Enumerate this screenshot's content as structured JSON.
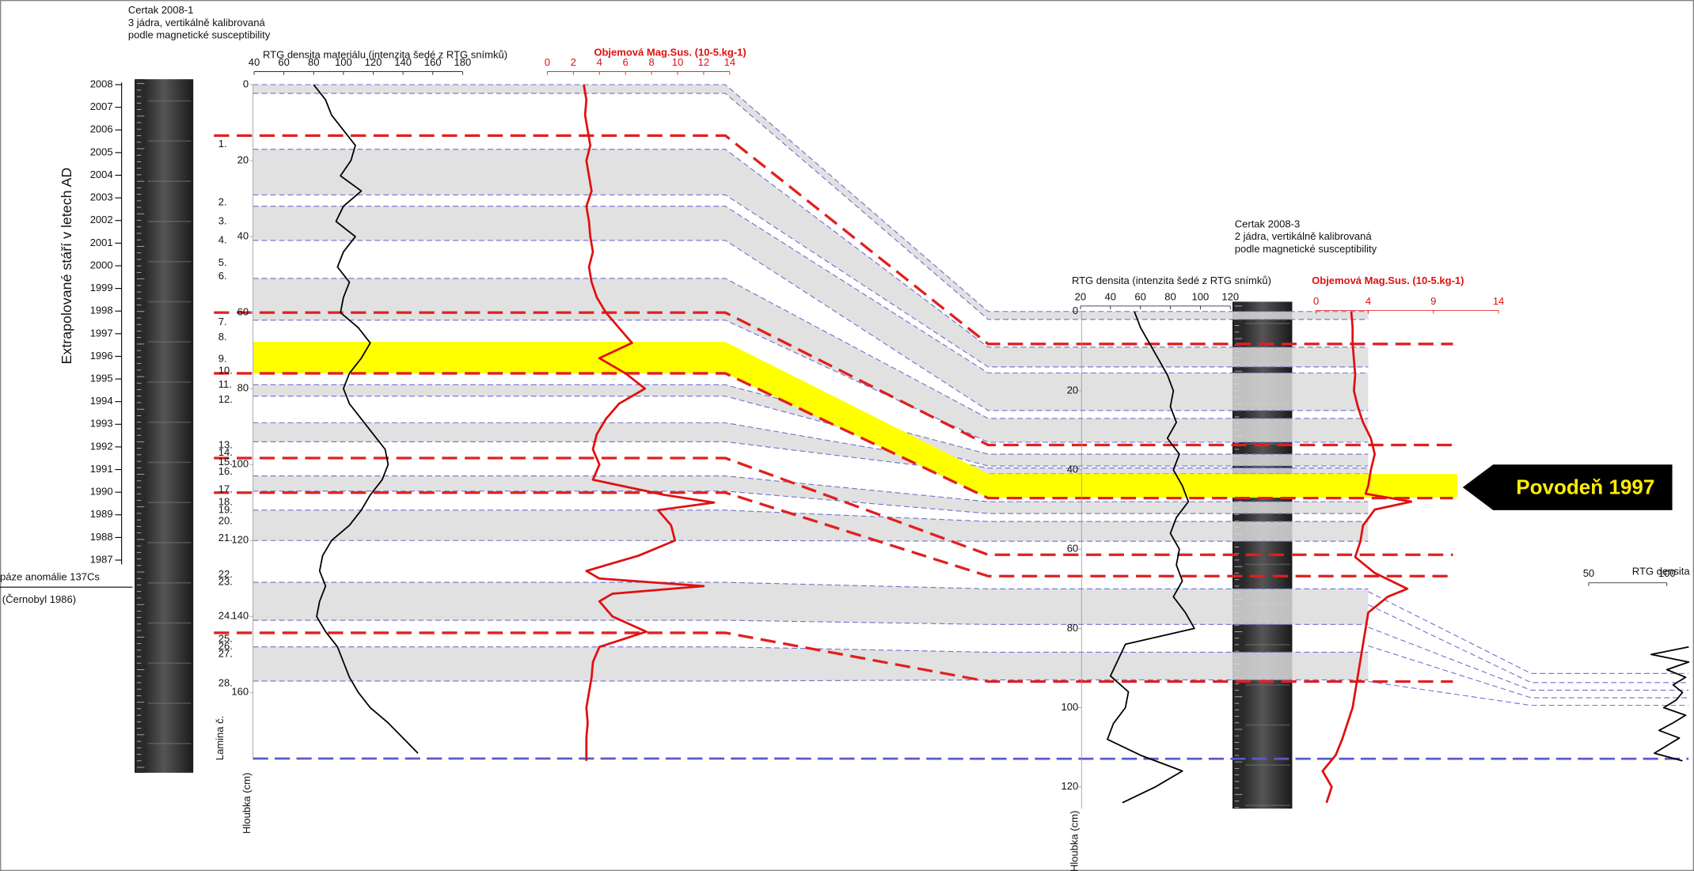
{
  "cores": [
    {
      "name": "Certak 2008-1",
      "lines": [
        "3 jádra, vertikálně kalibrovaná",
        "podle magnetické susceptibility"
      ],
      "depth_label": "Hloubka (cm)",
      "lamina_label": "Lamina č.",
      "depth_ticks": [
        0,
        20,
        40,
        60,
        80,
        100,
        120,
        140,
        160
      ],
      "laminae": [
        {
          "label": "1.",
          "depth": 15.7
        },
        {
          "label": "2.",
          "depth": 31
        },
        {
          "label": "3.",
          "depth": 36
        },
        {
          "label": "4.",
          "depth": 41
        },
        {
          "label": "5.",
          "depth": 47
        },
        {
          "label": "6.",
          "depth": 50.5
        },
        {
          "label": "7.",
          "depth": 62.6
        },
        {
          "label": "8.",
          "depth": 66.6
        },
        {
          "label": "9.",
          "depth": 72.3
        },
        {
          "label": "10.",
          "depth": 75.4
        },
        {
          "label": "11.",
          "depth": 79
        },
        {
          "label": "12.",
          "depth": 83
        },
        {
          "label": "13.",
          "depth": 95
        },
        {
          "label": "14.",
          "depth": 97
        },
        {
          "label": "15.",
          "depth": 99.4
        },
        {
          "label": "16.",
          "depth": 102
        },
        {
          "label": "17.",
          "depth": 106.6
        },
        {
          "label": "18.",
          "depth": 110
        },
        {
          "label": "19.",
          "depth": 112
        },
        {
          "label": "20.",
          "depth": 115
        },
        {
          "label": "21.",
          "depth": 119.4
        },
        {
          "label": "22.",
          "depth": 129
        },
        {
          "label": "23.",
          "depth": 131
        },
        {
          "label": "24.",
          "depth": 140
        },
        {
          "label": "25.",
          "depth": 146
        },
        {
          "label": "26.",
          "depth": 148
        },
        {
          "label": "27.",
          "depth": 150
        },
        {
          "label": "28.",
          "depth": 157.7
        }
      ],
      "rtg": {
        "title": "RTG densita materiálu (intenzita šedé z RTG snímků)",
        "lim": [
          40,
          180
        ],
        "ticks": [
          40,
          60,
          80,
          100,
          120,
          140,
          160,
          180
        ],
        "color": "#000000",
        "depths": [
          0,
          4,
          8,
          12,
          16,
          20,
          24,
          28,
          32,
          36,
          40,
          44,
          48,
          52,
          56,
          60,
          64,
          68,
          72,
          76,
          80,
          84,
          88,
          92,
          96,
          100,
          104,
          108,
          112,
          116,
          120,
          124,
          128,
          132,
          136,
          140,
          144,
          148,
          152,
          156,
          160,
          164,
          168,
          172,
          176
        ],
        "values": [
          80,
          88,
          92,
          100,
          108,
          105,
          98,
          112,
          100,
          95,
          108,
          100,
          96,
          104,
          100,
          98,
          110,
          118,
          112,
          104,
          100,
          104,
          112,
          120,
          128,
          130,
          126,
          118,
          112,
          104,
          92,
          86,
          84,
          88,
          84,
          82,
          88,
          96,
          100,
          104,
          110,
          118,
          130,
          140,
          150
        ]
      },
      "magsus": {
        "title": "Objemová Mag.Sus. (10-5.kg-1)",
        "lim": [
          0,
          14
        ],
        "ticks": [
          0,
          2,
          4,
          6,
          8,
          10,
          12,
          14
        ],
        "color": "#e01010",
        "depths": [
          0,
          4,
          8,
          12,
          16,
          20,
          24,
          28,
          32,
          36,
          40,
          44,
          48,
          52,
          56,
          60,
          64,
          68,
          72,
          76,
          80,
          84,
          88,
          92,
          96,
          100,
          104,
          108,
          110,
          112,
          116,
          120,
          124,
          128,
          130,
          132,
          134,
          136,
          140,
          144,
          148,
          152,
          156,
          160,
          164,
          168,
          172,
          176,
          178
        ],
        "values": [
          2.8,
          3,
          2.9,
          3.1,
          3.3,
          3,
          3.2,
          3.4,
          3,
          3.2,
          3.3,
          3.5,
          3.2,
          3.4,
          3.8,
          4.5,
          5.5,
          6.5,
          4,
          6,
          7.5,
          5.5,
          4.5,
          3.8,
          3.5,
          4,
          3.5,
          9,
          12.8,
          8.5,
          9.5,
          9.8,
          7,
          3,
          4,
          12,
          5,
          4,
          5,
          7.6,
          4,
          3.5,
          3.4,
          3.2,
          3,
          3.1,
          3,
          3,
          3
        ]
      }
    },
    {
      "name": "Certak 2008-3",
      "lines": [
        "2 jádra, vertikálně kalibrovaná",
        "podle magnetické susceptibility"
      ],
      "depth_label": "Hloubka (cm)",
      "depth_ticks": [
        0,
        20,
        40,
        60,
        80,
        100,
        120
      ],
      "rtg": {
        "title": "RTG densita (intenzita šedé z RTG snímků)",
        "lim": [
          20,
          120
        ],
        "ticks": [
          20,
          40,
          60,
          80,
          100,
          120
        ],
        "color": "#000000",
        "depths": [
          0,
          4,
          8,
          12,
          16,
          20,
          24,
          28,
          32,
          36,
          40,
          44,
          48,
          52,
          56,
          60,
          64,
          68,
          72,
          76,
          80,
          84,
          88,
          92,
          96,
          100,
          104,
          108,
          112,
          116,
          120,
          124
        ],
        "values": [
          56,
          60,
          66,
          72,
          78,
          82,
          80,
          84,
          78,
          86,
          82,
          88,
          92,
          84,
          80,
          86,
          84,
          88,
          82,
          90,
          96,
          50,
          45,
          40,
          52,
          50,
          42,
          38,
          60,
          88,
          70,
          48
        ]
      },
      "magsus": {
        "title": "Objemová Mag.Sus. (10-5.kg-1)",
        "lim": [
          0,
          14
        ],
        "ticks": [
          0,
          4,
          9,
          14
        ],
        "color": "#e01010",
        "depths": [
          0,
          4,
          8,
          12,
          16,
          20,
          24,
          28,
          32,
          36,
          40,
          44,
          46,
          48,
          50,
          54,
          58,
          62,
          66,
          70,
          72,
          76,
          80,
          84,
          88,
          92,
          96,
          100,
          104,
          108,
          112,
          116,
          120,
          124
        ],
        "values": [
          2.7,
          2.8,
          2.8,
          2.9,
          3,
          2.9,
          3.2,
          3.6,
          4.2,
          4.5,
          4.2,
          4,
          3.8,
          7.3,
          4.5,
          3.6,
          3.4,
          3,
          4.5,
          7,
          5.5,
          4,
          3.8,
          3.6,
          3.4,
          3.2,
          3,
          2.8,
          2.4,
          2,
          1.5,
          0.5,
          1.2,
          0.8
        ]
      }
    },
    {
      "rtg": {
        "title": "RTG densita",
        "lim": [
          50,
          100
        ],
        "ticks": [
          50,
          100
        ],
        "color": "#000000",
        "depths": [
          148,
          150,
          152,
          154,
          156,
          158,
          160,
          162,
          164,
          166,
          168,
          170,
          172,
          174,
          176,
          178
        ],
        "values": [
          114,
          90,
          114,
          100,
          112,
          104,
          110,
          106,
          98,
          112,
          104,
          95,
          108,
          100,
          92,
          110
        ]
      }
    }
  ],
  "age_axis": {
    "label": "Extrapolované stáří v letech AD",
    "years": [
      2008,
      2007,
      2006,
      2005,
      2004,
      2003,
      2002,
      2001,
      2000,
      1999,
      1998,
      1997,
      1996,
      1995,
      1994,
      1993,
      1992,
      1991,
      1990,
      1989,
      1988,
      1987
    ]
  },
  "cs_note": [
    "páze anomálie 137Cs",
    "(Černobyl 1986)"
  ],
  "flood": "Povodeň 1997",
  "red_lines": [
    [
      13.4,
      8.2
    ],
    [
      60,
      33.7
    ],
    [
      76,
      47.1
    ],
    [
      98.3,
      61.4
    ],
    [
      107.4,
      66.8
    ],
    [
      144.3,
      93.4
    ]
  ],
  "bands": [
    {
      "top": [
        0,
        0
      ],
      "bottom": [
        2.3,
        2
      ]
    },
    {
      "top": [
        17,
        9
      ],
      "bottom": [
        29,
        14
      ]
    },
    {
      "top": [
        32,
        15.5
      ],
      "bottom": [
        41,
        25
      ]
    },
    {
      "top": [
        51,
        27
      ],
      "bottom": [
        62,
        33
      ]
    },
    {
      "top": [
        79,
        36
      ],
      "bottom": [
        82,
        39
      ]
    },
    {
      "top": [
        89,
        39.5
      ],
      "bottom": [
        94,
        41
      ]
    },
    {
      "top": [
        103,
        48
      ],
      "bottom": [
        107,
        51
      ]
    },
    {
      "top": [
        112,
        53
      ],
      "bottom": [
        120,
        58
      ]
    },
    {
      "top": [
        131,
        70
      ],
      "bottom": [
        141,
        79
      ]
    },
    {
      "top": [
        148,
        86
      ],
      "bottom": [
        157,
        93
      ]
    }
  ],
  "yellow": {
    "top": [
      67.7,
      41
    ],
    "bottom": [
      76,
      47
    ]
  },
  "bottom_line": [
    177.4,
    112.9
  ],
  "links_23": [
    [
      70.7,
      155
    ],
    [
      74,
      157.4
    ],
    [
      79.7,
      159.4
    ],
    [
      84.4,
      161.4
    ],
    [
      93.4,
      163.4
    ]
  ]
}
